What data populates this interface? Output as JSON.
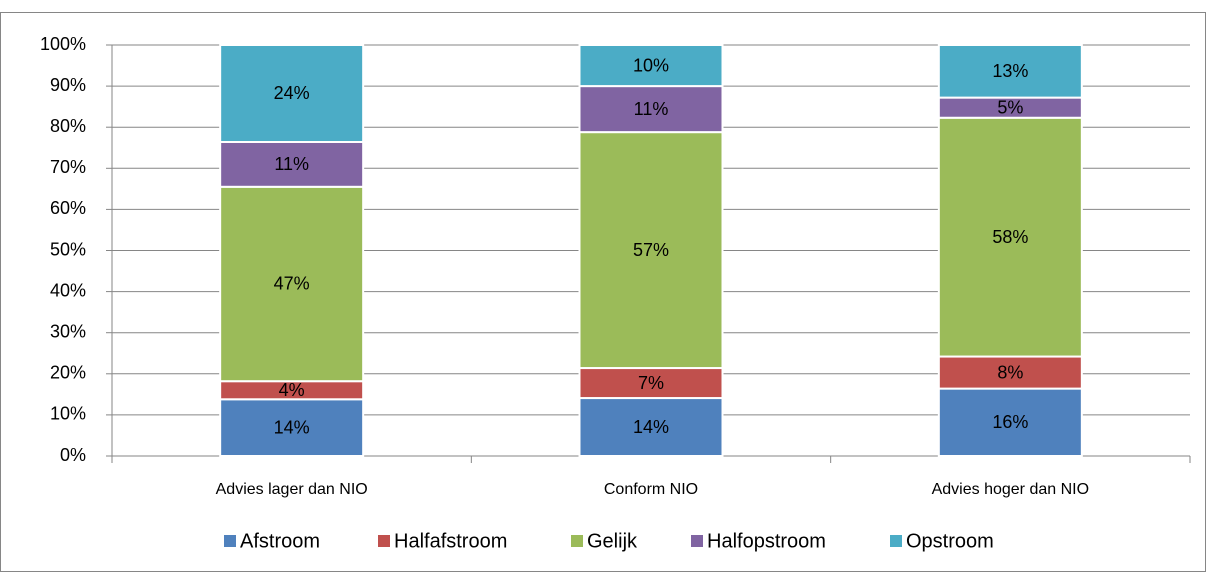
{
  "chart_data": {
    "type": "stacked_bar",
    "categories": [
      "Advies lager dan NIO",
      "Conform NIO",
      "Advies hoger dan NIO"
    ],
    "series": [
      {
        "name": "Afstroom",
        "color": "#4f81bd",
        "values": [
          13.8,
          14.1,
          16.4
        ],
        "value_labels": [
          "14%",
          "14%",
          "16%"
        ]
      },
      {
        "name": "Halfafstroom",
        "color": "#c0504d",
        "values": [
          4.4,
          7.3,
          7.8
        ],
        "value_labels": [
          "4%",
          "7%",
          "8%"
        ]
      },
      {
        "name": "Gelijk",
        "color": "#9bbb59",
        "values": [
          47.3,
          57.4,
          58.1
        ],
        "value_labels": [
          "47%",
          "57%",
          "58%"
        ]
      },
      {
        "name": "Halfopstroom",
        "color": "#8064a2",
        "values": [
          10.9,
          11.2,
          4.9
        ],
        "value_labels": [
          "11%",
          "11%",
          "5%"
        ]
      },
      {
        "name": "Opstroom",
        "color": "#4bacc6",
        "values": [
          23.6,
          10.0,
          12.8
        ],
        "value_labels": [
          "24%",
          "10%",
          "13%"
        ]
      }
    ],
    "ylim": [
      0,
      100
    ],
    "yticks": [
      {
        "value": 0,
        "label": "0%"
      },
      {
        "value": 10,
        "label": "10%"
      },
      {
        "value": 20,
        "label": "20%"
      },
      {
        "value": 30,
        "label": "30%"
      },
      {
        "value": 40,
        "label": "40%"
      },
      {
        "value": 50,
        "label": "50%"
      },
      {
        "value": 60,
        "label": "60%"
      },
      {
        "value": 70,
        "label": "70%"
      },
      {
        "value": 80,
        "label": "80%"
      },
      {
        "value": 90,
        "label": "90%"
      },
      {
        "value": 100,
        "label": "100%"
      }
    ],
    "grid": true,
    "legend": "bottom"
  }
}
